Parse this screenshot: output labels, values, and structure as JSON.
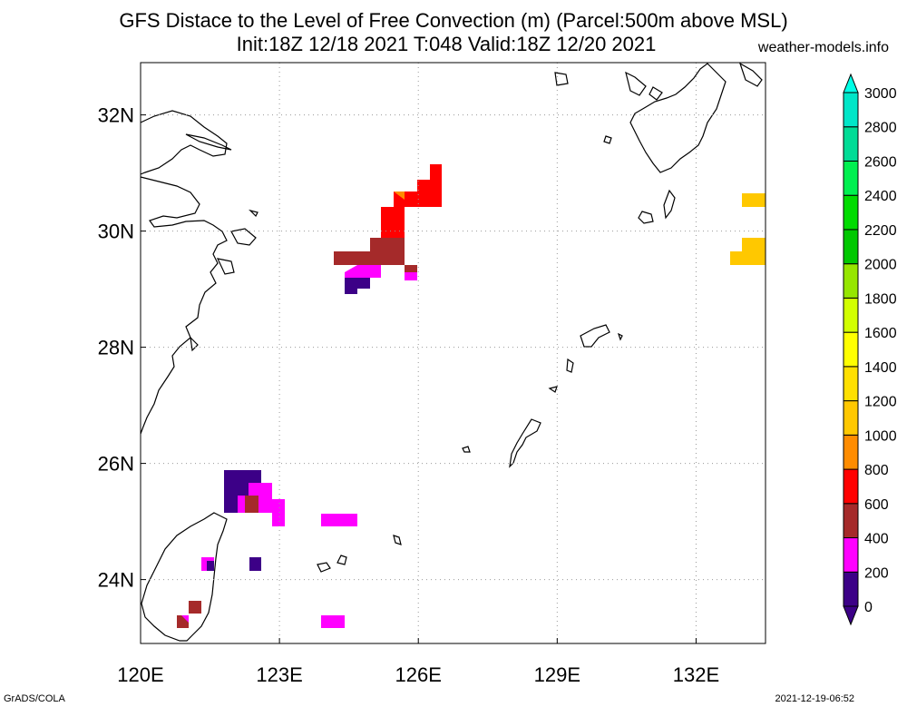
{
  "title_line1": "GFS Distace to the Level of Free Convection (m) (Parcel:500m above MSL)",
  "title_line2": "Init:18Z 12/18 2021 T:048 Valid:18Z 12/20 2021",
  "site": "weather-models.info",
  "footer_left": "GrADS/COLA",
  "footer_right": "2021-12-19-06:52",
  "map": {
    "lon_range": [
      120,
      133.5
    ],
    "lat_range": [
      22.9,
      32.9
    ],
    "lon_ticks": [
      {
        "value": 120,
        "label": "120E"
      },
      {
        "value": 123,
        "label": "123E"
      },
      {
        "value": 126,
        "label": "126E"
      },
      {
        "value": 129,
        "label": "129E"
      },
      {
        "value": 132,
        "label": "132E"
      }
    ],
    "lat_ticks": [
      {
        "value": 24,
        "label": "24N"
      },
      {
        "value": 26,
        "label": "26N"
      },
      {
        "value": 28,
        "label": "28N"
      },
      {
        "value": 30,
        "label": "30N"
      },
      {
        "value": 32,
        "label": "32N"
      }
    ],
    "grid": "dotted"
  },
  "colorbar": {
    "levels": [
      "0",
      "200",
      "400",
      "600",
      "800",
      "1000",
      "1200",
      "1400",
      "1600",
      "1800",
      "2000",
      "2200",
      "2400",
      "2600",
      "2800",
      "3000"
    ],
    "colors": [
      "#3c0087",
      "#ff00ff",
      "#a52a2a",
      "#ff0000",
      "#ff8c00",
      "#ffc800",
      "#ffe000",
      "#ffff00",
      "#d2ff00",
      "#96e600",
      "#00c800",
      "#00dc00",
      "#00f050",
      "#00dc96",
      "#00e6c8",
      "#00ffe6"
    ]
  },
  "field_colors": {
    "lfc_0": "#3c0087",
    "lfc_200": "#ff00ff",
    "lfc_400": "#a52a2a",
    "lfc_600": "#ff0000",
    "lfc_800": "#ff8c00",
    "lfc_1000": "#ffc800"
  }
}
